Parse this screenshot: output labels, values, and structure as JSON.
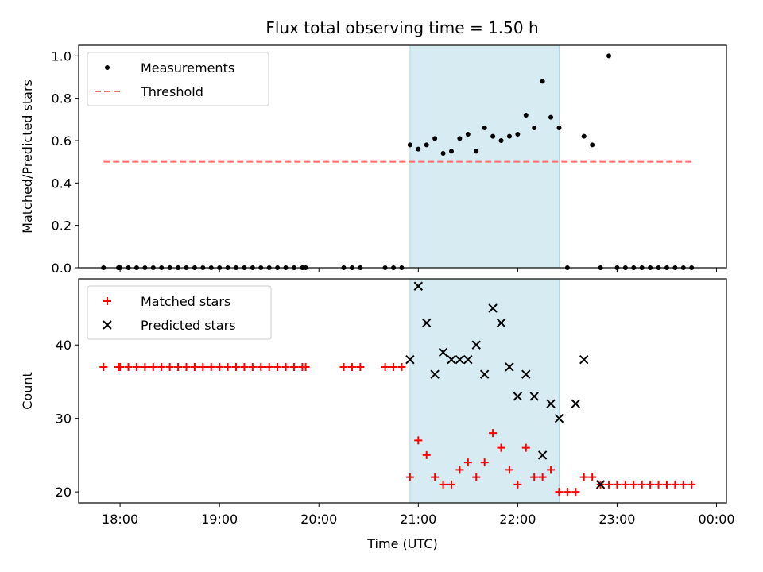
{
  "title": "Flux total observing time = 1.50 h",
  "chart_data": [
    {
      "type": "scatter",
      "ylabel": "Matched/Predicted stars",
      "ylim": [
        0.0,
        1.05
      ],
      "yticks": [
        0.0,
        0.2,
        0.4,
        0.6,
        0.8,
        1.0
      ],
      "ytick_labels": [
        "0.0",
        "0.2",
        "0.4",
        "0.6",
        "0.8",
        "1.0"
      ],
      "legend": {
        "placement": "top-left",
        "entries": [
          "Measurements",
          "Threshold"
        ]
      },
      "shaded_interval": [
        "20:55",
        "22:25"
      ],
      "threshold": {
        "name": "Threshold",
        "y": 0.5,
        "x_range": [
          "17:50",
          "23:45"
        ],
        "color": "#ff6e6e"
      },
      "series": [
        {
          "name": "Measurements",
          "color": "#000000",
          "x": [
            "17:50",
            "17:59",
            "18:00",
            "18:05",
            "18:10",
            "18:15",
            "18:20",
            "18:25",
            "18:30",
            "18:35",
            "18:40",
            "18:45",
            "18:50",
            "18:55",
            "19:00",
            "19:05",
            "19:10",
            "19:15",
            "19:20",
            "19:25",
            "19:30",
            "19:35",
            "19:40",
            "19:45",
            "19:50",
            "19:52",
            "20:15",
            "20:20",
            "20:25",
            "20:40",
            "20:45",
            "20:50",
            "20:55",
            "21:00",
            "21:05",
            "21:10",
            "21:15",
            "21:20",
            "21:25",
            "21:30",
            "21:35",
            "21:40",
            "21:45",
            "21:50",
            "21:55",
            "22:00",
            "22:05",
            "22:10",
            "22:15",
            "22:20",
            "22:25",
            "22:30",
            "22:40",
            "22:45",
            "22:50",
            "22:55",
            "23:00",
            "23:05",
            "23:10",
            "23:15",
            "23:20",
            "23:25",
            "23:30",
            "23:35",
            "23:40",
            "23:45"
          ],
          "y": [
            0,
            0,
            0,
            0,
            0,
            0,
            0,
            0,
            0,
            0,
            0,
            0,
            0,
            0,
            0,
            0,
            0,
            0,
            0,
            0,
            0,
            0,
            0,
            0,
            0,
            0,
            0,
            0,
            0,
            0,
            0,
            0,
            0.58,
            0.56,
            0.58,
            0.61,
            0.54,
            0.55,
            0.61,
            0.63,
            0.55,
            0.66,
            0.62,
            0.6,
            0.62,
            0.63,
            0.72,
            0.66,
            0.88,
            0.71,
            0.66,
            0,
            0.62,
            0.58,
            0,
            1.0,
            0,
            0,
            0,
            0,
            0,
            0,
            0,
            0,
            0,
            0
          ]
        }
      ]
    },
    {
      "type": "scatter",
      "xlabel": "Time (UTC)",
      "ylabel": "Count",
      "ylim": [
        18.5,
        49
      ],
      "yticks": [
        20,
        30,
        40
      ],
      "ytick_labels": [
        "20",
        "30",
        "40"
      ],
      "xticks": [
        "18:00",
        "19:00",
        "20:00",
        "21:00",
        "22:00",
        "23:00",
        "00:00"
      ],
      "legend": {
        "placement": "top-left",
        "entries": [
          "Matched stars",
          "Predicted stars"
        ]
      },
      "shaded_interval": [
        "20:55",
        "22:25"
      ],
      "series": [
        {
          "name": "Matched stars",
          "color": "#ff0000",
          "marker": "+",
          "x": [
            "17:50",
            "17:59",
            "18:00",
            "18:05",
            "18:10",
            "18:15",
            "18:20",
            "18:25",
            "18:30",
            "18:35",
            "18:40",
            "18:45",
            "18:50",
            "18:55",
            "19:00",
            "19:05",
            "19:10",
            "19:15",
            "19:20",
            "19:25",
            "19:30",
            "19:35",
            "19:40",
            "19:45",
            "19:50",
            "19:52",
            "20:15",
            "20:20",
            "20:25",
            "20:40",
            "20:45",
            "20:50",
            "20:55",
            "21:00",
            "21:05",
            "21:10",
            "21:15",
            "21:20",
            "21:25",
            "21:30",
            "21:35",
            "21:40",
            "21:45",
            "21:50",
            "21:55",
            "22:00",
            "22:05",
            "22:10",
            "22:15",
            "22:20",
            "22:25",
            "22:30",
            "22:35",
            "22:40",
            "22:45",
            "22:50",
            "22:55",
            "23:00",
            "23:05",
            "23:10",
            "23:15",
            "23:20",
            "23:25",
            "23:30",
            "23:35",
            "23:40",
            "23:45"
          ],
          "y": [
            37,
            37,
            37,
            37,
            37,
            37,
            37,
            37,
            37,
            37,
            37,
            37,
            37,
            37,
            37,
            37,
            37,
            37,
            37,
            37,
            37,
            37,
            37,
            37,
            37,
            37,
            37,
            37,
            37,
            37,
            37,
            37,
            22,
            27,
            25,
            22,
            21,
            21,
            23,
            24,
            22,
            24,
            28,
            26,
            23,
            21,
            26,
            22,
            22,
            23,
            20,
            20,
            20,
            22,
            22,
            21,
            21,
            21,
            21,
            21,
            21,
            21,
            21,
            21,
            21,
            21,
            21
          ]
        },
        {
          "name": "Predicted stars",
          "color": "#000000",
          "marker": "x",
          "x": [
            "20:55",
            "21:00",
            "21:05",
            "21:10",
            "21:15",
            "21:20",
            "21:25",
            "21:30",
            "21:35",
            "21:40",
            "21:45",
            "21:50",
            "21:55",
            "22:00",
            "22:05",
            "22:10",
            "22:15",
            "22:20",
            "22:25",
            "22:35",
            "22:40",
            "22:50"
          ],
          "y": [
            38,
            48,
            43,
            36,
            39,
            38,
            38,
            38,
            40,
            36,
            45,
            43,
            37,
            33,
            36,
            33,
            25,
            32,
            30,
            32,
            38,
            21
          ]
        }
      ]
    }
  ]
}
